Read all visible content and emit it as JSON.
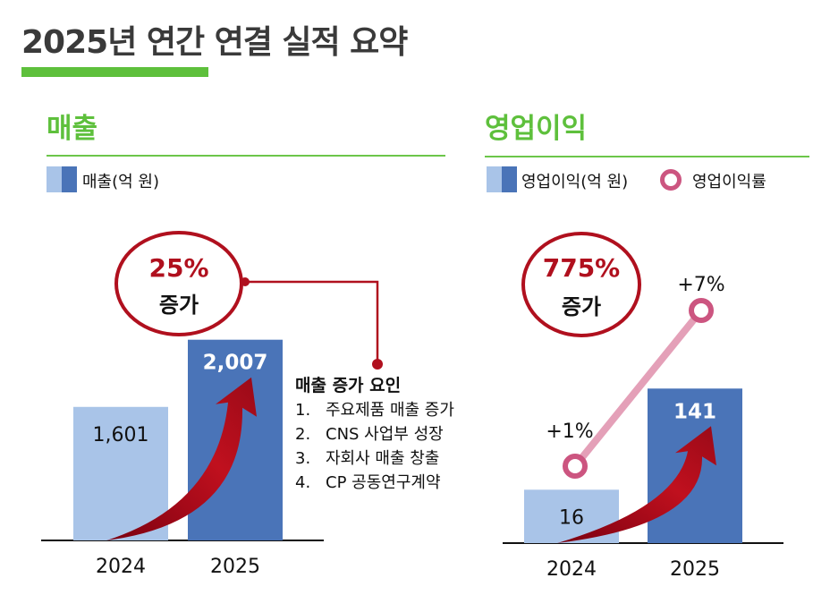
{
  "title": "2025년 연간 연결 실적 요약",
  "colors": {
    "accent_green": "#5ec03c",
    "bar_2024": "#a9c4e8",
    "bar_2025": "#4a74b8",
    "highlight_red": "#b0101e",
    "margin_line": "#e4a0b8",
    "margin_marker": "#cc5580"
  },
  "revenue": {
    "heading": "매출",
    "legend": "매출(억 원)",
    "badge": {
      "percent": "25%",
      "label": "증가"
    },
    "reasons": {
      "title": "매출 증가 요인",
      "items": [
        {
          "num": "1.",
          "text": "주요제품 매출 증가"
        },
        {
          "num": "2.",
          "text": "CNS 사업부 성장"
        },
        {
          "num": "3.",
          "text": "자회사 매출 창출"
        },
        {
          "num": "4.",
          "text": "CP 공동연구계약"
        }
      ]
    }
  },
  "operating_profit": {
    "heading": "영업이익",
    "legend_bar": "영업이익(억 원)",
    "legend_line": "영업이익률",
    "badge": {
      "percent": "775%",
      "label": "증가"
    }
  },
  "chart_data": [
    {
      "type": "bar",
      "categories": [
        "2024",
        "2025"
      ],
      "values": [
        1601,
        2007
      ],
      "value_labels": [
        "1,601",
        "2,007"
      ],
      "series_name": "매출(억 원)",
      "ylim": [
        794,
        2200
      ],
      "grid": false
    },
    {
      "type": "bar+line",
      "categories": [
        "2024",
        "2025"
      ],
      "values": [
        16,
        141
      ],
      "value_labels": [
        "16",
        "141"
      ],
      "series_name": "영업이익(억 원)",
      "line_series": {
        "name": "영업이익률",
        "values": [
          1,
          7
        ],
        "labels": [
          "+1%",
          "+7%"
        ]
      },
      "ylim": [
        -50,
        180
      ],
      "grid": false
    }
  ]
}
